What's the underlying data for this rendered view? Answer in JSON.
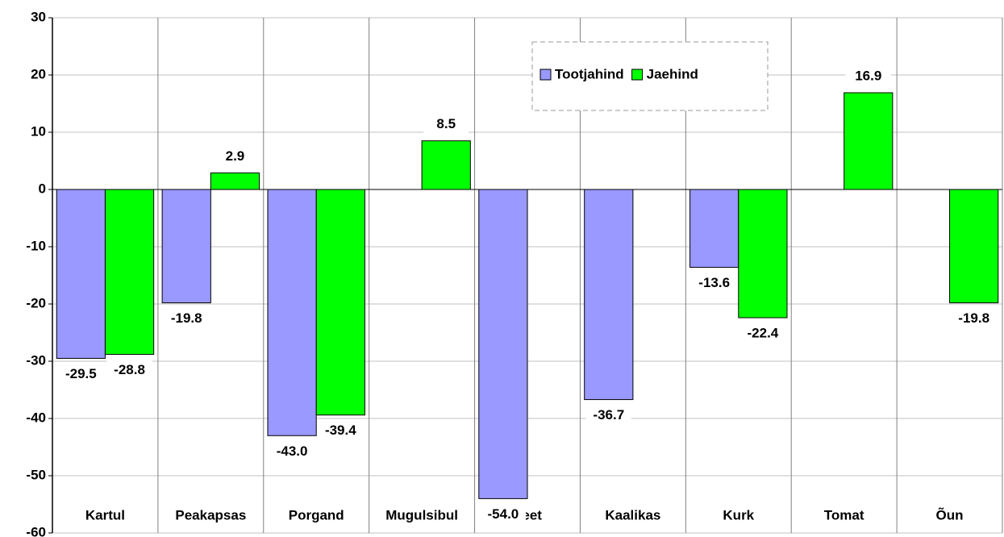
{
  "chart_data": {
    "type": "bar",
    "categories": [
      "Kartul",
      "Peakapsas",
      "Porgand",
      "Mugulsibul",
      "Peet",
      "Kaalikas",
      "Kurk",
      "Tomat",
      "Õun"
    ],
    "series": [
      {
        "name": "Tootjahind",
        "color": "#9999ff",
        "values": [
          -29.5,
          -19.8,
          -43.0,
          null,
          -54.0,
          -36.7,
          -13.6,
          null,
          null
        ],
        "value_labels": [
          "-29.5",
          "-19.8",
          "-43.0",
          null,
          "-54.0",
          "-36.7",
          "-13.6",
          null,
          null
        ]
      },
      {
        "name": "Jaehind",
        "color": "#00ff00",
        "values": [
          -28.8,
          2.9,
          -39.4,
          8.5,
          null,
          null,
          -22.4,
          16.9,
          -19.8
        ],
        "value_labels": [
          "-28.8",
          "2.9",
          "-39.4",
          "8.5",
          null,
          null,
          "-22.4",
          "16.9",
          "-19.8"
        ]
      }
    ],
    "ylim": [
      -60,
      30
    ],
    "yticks": [
      -60,
      -50,
      -40,
      -30,
      -20,
      -10,
      0,
      10,
      20,
      30
    ],
    "grid": true
  }
}
